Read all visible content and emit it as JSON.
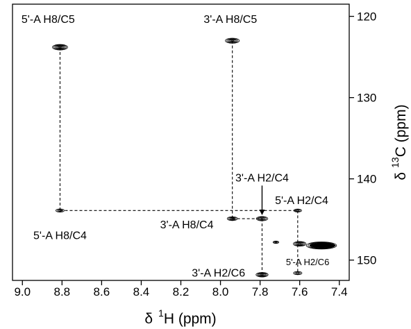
{
  "chart_data": {
    "type": "scatter",
    "title": "",
    "x_axis": {
      "label_prefix": "δ",
      "label_sup": "1",
      "label_rest": "H (ppm)",
      "range": [
        9.05,
        7.35
      ],
      "reversed": true,
      "ticks": [
        "9.0",
        "8.8",
        "8.6",
        "8.4",
        "8.2",
        "8.0",
        "7.8",
        "7.6",
        "7.4"
      ]
    },
    "y_axis": {
      "label_prefix": "δ",
      "label_sup": "13",
      "label_rest": "C (ppm)",
      "range": [
        118.5,
        152.5
      ],
      "reversed": true,
      "position": "right",
      "ticks": [
        "120",
        "130",
        "140",
        "150"
      ]
    },
    "grid": false,
    "peaks": [
      {
        "label": "5'-A H8/C5",
        "x": 8.81,
        "y": 123.8,
        "size": 1.0
      },
      {
        "label": "3'-A H8/C5",
        "x": 7.94,
        "y": 123.0,
        "size": 0.9
      },
      {
        "label": "5'-A H8/C4",
        "x": 8.81,
        "y": 143.9,
        "size": 0.45
      },
      {
        "label": "3'-A H8/C4",
        "x": 7.94,
        "y": 144.9,
        "size": 0.6
      },
      {
        "label": "3'-A H2/C4",
        "x": 7.79,
        "y": 144.9,
        "size": 0.7
      },
      {
        "label": "5'-A H2/C4",
        "x": 7.61,
        "y": 143.9,
        "size": 0.4
      },
      {
        "label": "3'-A H2/C6",
        "x": 7.79,
        "y": 151.8,
        "size": 0.75
      },
      {
        "label": "5'-A H2/C6",
        "x": 7.61,
        "y": 151.6,
        "size": 0.45
      },
      {
        "label": "",
        "x": 7.72,
        "y": 147.8,
        "size": 0.25
      },
      {
        "label": "",
        "x": 7.6,
        "y": 148.0,
        "size": 0.8
      },
      {
        "label": "",
        "x": 7.49,
        "y": 148.2,
        "size": 2.2
      }
    ],
    "annotations": [
      {
        "text": "5'-A H8/C5",
        "x": 8.87,
        "y": 120.3
      },
      {
        "text": "3'-A H8/C5",
        "x": 7.95,
        "y": 120.3
      },
      {
        "text": "5'-A H8/C4",
        "x": 8.81,
        "y": 146.9
      },
      {
        "text": "3'-A H2/C4",
        "x": 7.79,
        "y": 139.8
      },
      {
        "text": "5'-A H2/C4",
        "x": 7.59,
        "y": 142.6
      },
      {
        "text": "3'-A H8/C4",
        "x": 8.17,
        "y": 145.6
      },
      {
        "text": "3'-A H2/C6",
        "x": 8.01,
        "y": 151.5
      },
      {
        "text": "5'-A H2/C6",
        "x": 7.56,
        "y": 150.1,
        "small": true
      }
    ]
  }
}
